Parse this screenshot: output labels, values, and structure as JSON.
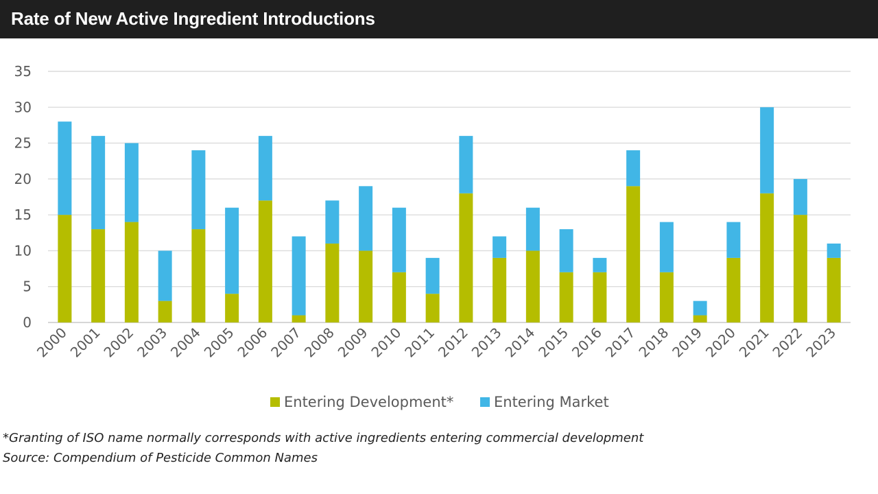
{
  "header": {
    "title": "Rate of New Active Ingredient Introductions"
  },
  "chart_data": {
    "type": "bar",
    "stacked": true,
    "categories": [
      "2000",
      "2001",
      "2002",
      "2003",
      "2004",
      "2005",
      "2006",
      "2007",
      "2008",
      "2009",
      "2010",
      "2011",
      "2012",
      "2013",
      "2014",
      "2015",
      "2016",
      "2017",
      "2018",
      "2019",
      "2020",
      "2021",
      "2022",
      "2023"
    ],
    "series": [
      {
        "name": "Entering Development*",
        "color": "#b5bd00",
        "values": [
          15,
          13,
          14,
          3,
          13,
          4,
          17,
          1,
          11,
          10,
          7,
          4,
          18,
          9,
          10,
          7,
          7,
          19,
          7,
          1,
          9,
          18,
          15,
          9
        ]
      },
      {
        "name": "Entering Market",
        "color": "#41b6e6",
        "values": [
          13,
          13,
          11,
          7,
          11,
          12,
          9,
          11,
          6,
          9,
          9,
          5,
          8,
          3,
          6,
          6,
          2,
          5,
          7,
          2,
          5,
          12,
          5,
          2
        ]
      }
    ],
    "ylim": [
      0,
      35
    ],
    "yticks": [
      0,
      5,
      10,
      15,
      20,
      25,
      30,
      35
    ],
    "grid": true,
    "legend_position": "bottom"
  },
  "footnotes": {
    "note": "*Granting of ISO name normally corresponds with active ingredients entering commercial development",
    "source": "Source: Compendium of Pesticide Common Names"
  }
}
